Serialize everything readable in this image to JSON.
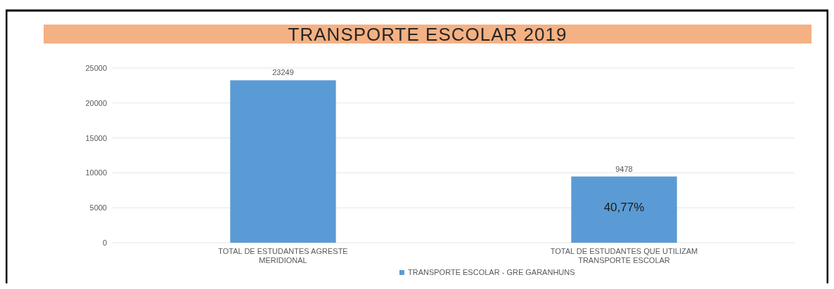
{
  "chart_data": {
    "type": "bar",
    "title": "TRANSPORTE ESCOLAR 2019",
    "categories": [
      "TOTAL DE ESTUDANTES AGRESTE MERIDIONAL",
      "TOTAL DE ESTUDANTES QUE UTILIZAM TRANSPORTE ESCOLAR"
    ],
    "series": [
      {
        "name": "TRANSPORTE ESCOLAR - GRE GARANHUNS",
        "color": "#5b9bd5",
        "values": [
          23249,
          9478
        ]
      }
    ],
    "ylim": [
      0,
      25000
    ],
    "yticks": [
      0,
      5000,
      10000,
      15000,
      20000,
      25000
    ],
    "grid": true,
    "data_labels": true,
    "legend": "bottom",
    "annotations": [
      "40,77%"
    ]
  }
}
